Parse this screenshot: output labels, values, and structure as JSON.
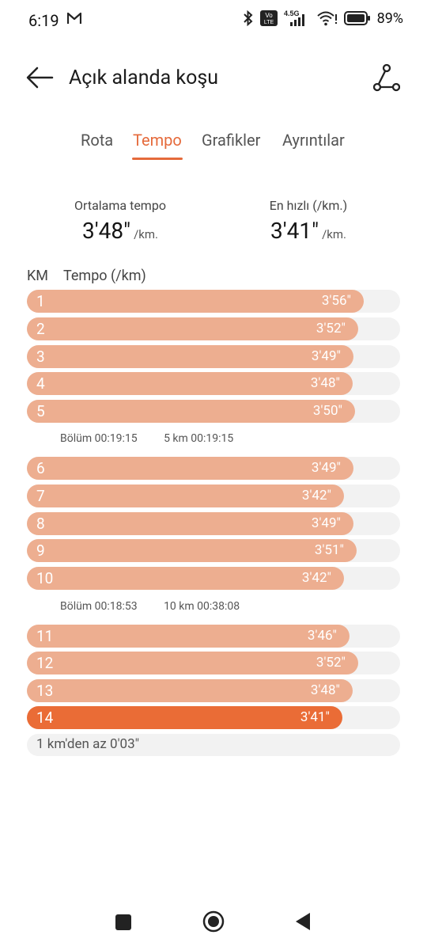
{
  "status": {
    "time": "6:19",
    "battery": "89%",
    "network": "4.5G",
    "volte": "Vo LTE"
  },
  "app_bar": {
    "title": "Açık alanda koşu"
  },
  "tabs": [
    {
      "label": "Rota",
      "active": false
    },
    {
      "label": "Tempo",
      "active": true
    },
    {
      "label": "Grafikler",
      "active": false
    },
    {
      "label": "Ayrıntılar",
      "active": false
    }
  ],
  "stats": {
    "avg_label": "Ortalama tempo",
    "avg_value": "3'48\"",
    "avg_unit": "/km.",
    "best_label": "En hızlı (/km.)",
    "best_value": "3'41\"",
    "best_unit": "/km."
  },
  "columns": {
    "km": "KM",
    "pace": "Tempo (/km)"
  },
  "splits": [
    {
      "km": "1",
      "pace": "3'56\"",
      "fill": 0.903
    },
    {
      "km": "2",
      "pace": "3'52\"",
      "fill": 0.888
    },
    {
      "km": "3",
      "pace": "3'49\"",
      "fill": 0.876
    },
    {
      "km": "4",
      "pace": "3'48\"",
      "fill": 0.873
    },
    {
      "km": "5",
      "pace": "3'50\"",
      "fill": 0.88
    },
    {
      "km": "6",
      "pace": "3'49\"",
      "fill": 0.876
    },
    {
      "km": "7",
      "pace": "3'42\"",
      "fill": 0.849
    },
    {
      "km": "8",
      "pace": "3'49\"",
      "fill": 0.876
    },
    {
      "km": "9",
      "pace": "3'51\"",
      "fill": 0.884
    },
    {
      "km": "10",
      "pace": "3'42\"",
      "fill": 0.849
    },
    {
      "km": "11",
      "pace": "3'46\"",
      "fill": 0.865
    },
    {
      "km": "12",
      "pace": "3'52\"",
      "fill": 0.888
    },
    {
      "km": "13",
      "pace": "3'48\"",
      "fill": 0.873
    },
    {
      "km": "14",
      "pace": "3'41\"",
      "fill": 0.845,
      "fastest": true
    }
  ],
  "segments": [
    {
      "section": "Bölüm 00:19:15",
      "total": "5 km 00:19:15"
    },
    {
      "section": "Bölüm 00:18:53",
      "total": "10 km 00:38:08"
    }
  ],
  "remaining": "1 km'den az 0'03\"",
  "colors": {
    "accent": "#e56a3b",
    "bar": "#edae90",
    "bar_fast": "#ea6c36",
    "track": "#f2f2f2"
  }
}
